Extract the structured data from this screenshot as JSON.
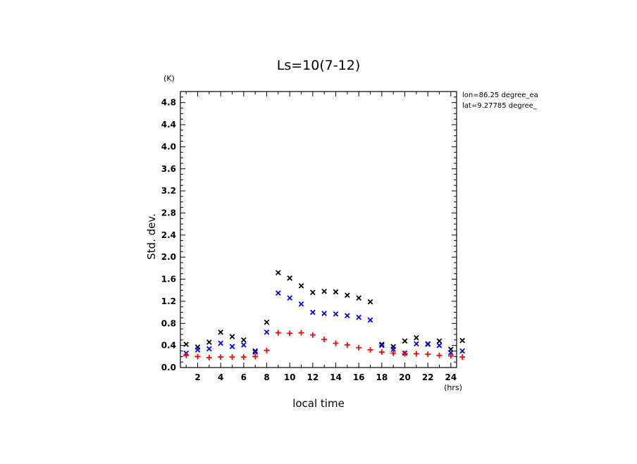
{
  "chart_data": {
    "type": "scatter",
    "title": "Ls=10(7-12)",
    "xlabel": "local time",
    "ylabel": "Std. dev.",
    "x_unit": "(hrs)",
    "y_unit": "(K)",
    "xlim": [
      0.5,
      24.5
    ],
    "ylim": [
      0,
      5.0
    ],
    "x_ticks": [
      2,
      4,
      6,
      8,
      10,
      12,
      14,
      16,
      18,
      20,
      22,
      24
    ],
    "y_ticks": [
      0.0,
      0.4,
      0.8,
      1.2,
      1.6,
      2.0,
      2.4,
      2.8,
      3.2,
      3.6,
      4.0,
      4.4,
      4.8
    ],
    "y_tick_labels": [
      "0.0",
      "0.4",
      "0.8",
      "1.2",
      "1.6",
      "2.0",
      "2.4",
      "2.8",
      "3.2",
      "3.6",
      "4.0",
      "4.4",
      "4.8"
    ],
    "annotations": [
      "lon=86.25 degree_ea",
      "lat=9.27785 degree_"
    ],
    "series": [
      {
        "marker": "x",
        "color": "#000000",
        "x": [
          1,
          2,
          3,
          4,
          5,
          6,
          7,
          8,
          9,
          10,
          11,
          12,
          13,
          14,
          15,
          16,
          17,
          18,
          19,
          20,
          21,
          22,
          23,
          24,
          25
        ],
        "values": [
          0.42,
          0.37,
          0.46,
          0.64,
          0.56,
          0.5,
          0.3,
          0.82,
          1.72,
          1.62,
          1.48,
          1.36,
          1.38,
          1.37,
          1.31,
          1.26,
          1.19,
          0.42,
          0.38,
          0.48,
          0.54,
          0.43,
          0.48,
          0.33,
          0.49
        ]
      },
      {
        "marker": "x",
        "color": "#0000ff",
        "x": [
          1,
          2,
          3,
          4,
          5,
          6,
          7,
          8,
          9,
          10,
          11,
          12,
          13,
          14,
          15,
          16,
          17,
          18,
          19,
          20,
          21,
          22,
          23,
          24,
          25
        ],
        "values": [
          0.26,
          0.32,
          0.34,
          0.44,
          0.38,
          0.41,
          0.28,
          0.64,
          1.35,
          1.26,
          1.15,
          1.0,
          0.98,
          0.97,
          0.94,
          0.91,
          0.86,
          0.4,
          0.33,
          0.26,
          0.43,
          0.42,
          0.4,
          0.27,
          0.3
        ]
      },
      {
        "marker": "+",
        "color": "#ff0000",
        "x": [
          1,
          2,
          3,
          4,
          5,
          6,
          7,
          8,
          9,
          10,
          11,
          12,
          13,
          14,
          15,
          16,
          17,
          18,
          19,
          20,
          21,
          22,
          23,
          24,
          25
        ],
        "values": [
          0.22,
          0.2,
          0.18,
          0.19,
          0.19,
          0.19,
          0.2,
          0.31,
          0.63,
          0.62,
          0.63,
          0.59,
          0.51,
          0.44,
          0.41,
          0.36,
          0.32,
          0.28,
          0.26,
          0.25,
          0.25,
          0.24,
          0.22,
          0.21,
          0.19
        ]
      }
    ]
  }
}
